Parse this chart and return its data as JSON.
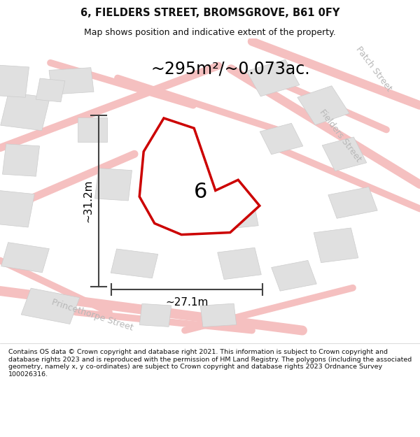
{
  "title": "6, FIELDERS STREET, BROMSGROVE, B61 0FY",
  "subtitle": "Map shows position and indicative extent of the property.",
  "area_text": "~295m²/~0.073ac.",
  "number_label": "6",
  "dim_width": "~27.1m",
  "dim_height": "~31.2m",
  "map_bg": "#eeece8",
  "plot_edge": "#cc0000",
  "road_color": "#f5c0c0",
  "building_color": "#e0e0e0",
  "building_edge": "#cccccc",
  "dim_color": "#444444",
  "street_text_color": "#b8b8b8",
  "title_color": "#111111",
  "footer_color": "#111111",
  "footer_text": "Contains OS data © Crown copyright and database right 2021. This information is subject to Crown copyright and database rights 2023 and is reproduced with the permission of HM Land Registry. The polygons (including the associated geometry, namely x, y co-ordinates) are subject to Crown copyright and database rights 2023 Ordnance Survey 100026316.",
  "figsize": [
    6.0,
    6.25
  ],
  "dpi": 100
}
